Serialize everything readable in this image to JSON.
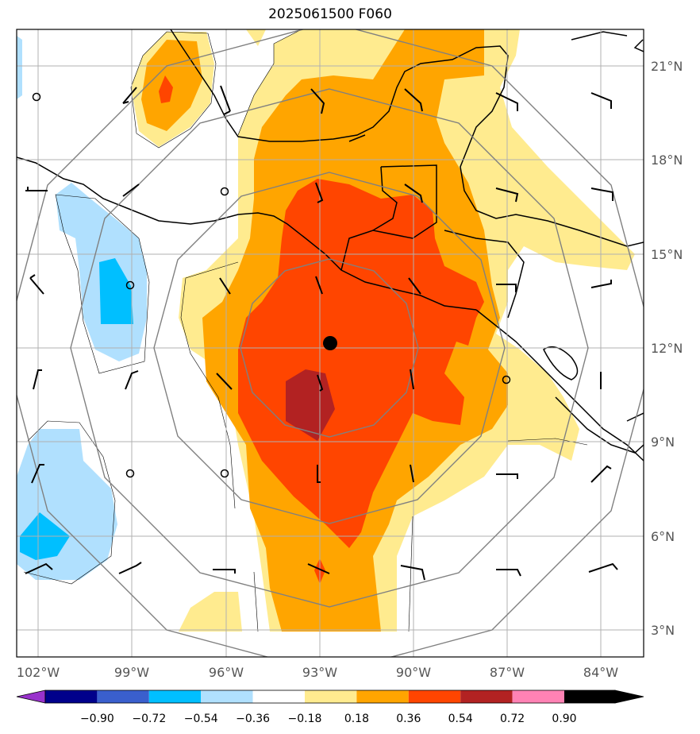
{
  "title": "2025061500 F060",
  "longitude_labels": [
    "102°W",
    "99°W",
    "96°W",
    "93°W",
    "90°W",
    "87°W",
    "84°W"
  ],
  "latitude_labels": [
    "21°N",
    "18°N",
    "15°N",
    "12°N",
    "9°N",
    "6°N",
    "3°N"
  ],
  "colorbar": {
    "tick_labels": [
      "−0.90",
      "−0.72",
      "−0.54",
      "−0.36",
      "−0.18",
      "0.18",
      "0.36",
      "0.54",
      "0.72",
      "0.90"
    ],
    "colors": [
      "#9932cc",
      "#00008b",
      "#3a5fcd",
      "#00bfff",
      "#b0e0fe",
      "#ffffff",
      "#ffeb8f",
      "#ffa500",
      "#ff4500",
      "#b22222",
      "#ff82b4"
    ]
  },
  "storm_center": {
    "lon": -92.7,
    "lat": 12.1
  },
  "colors": {
    "grid": "#b0b0b0",
    "range_rings": "#808080",
    "coastline": "#000000",
    "frame": "#000000"
  }
}
